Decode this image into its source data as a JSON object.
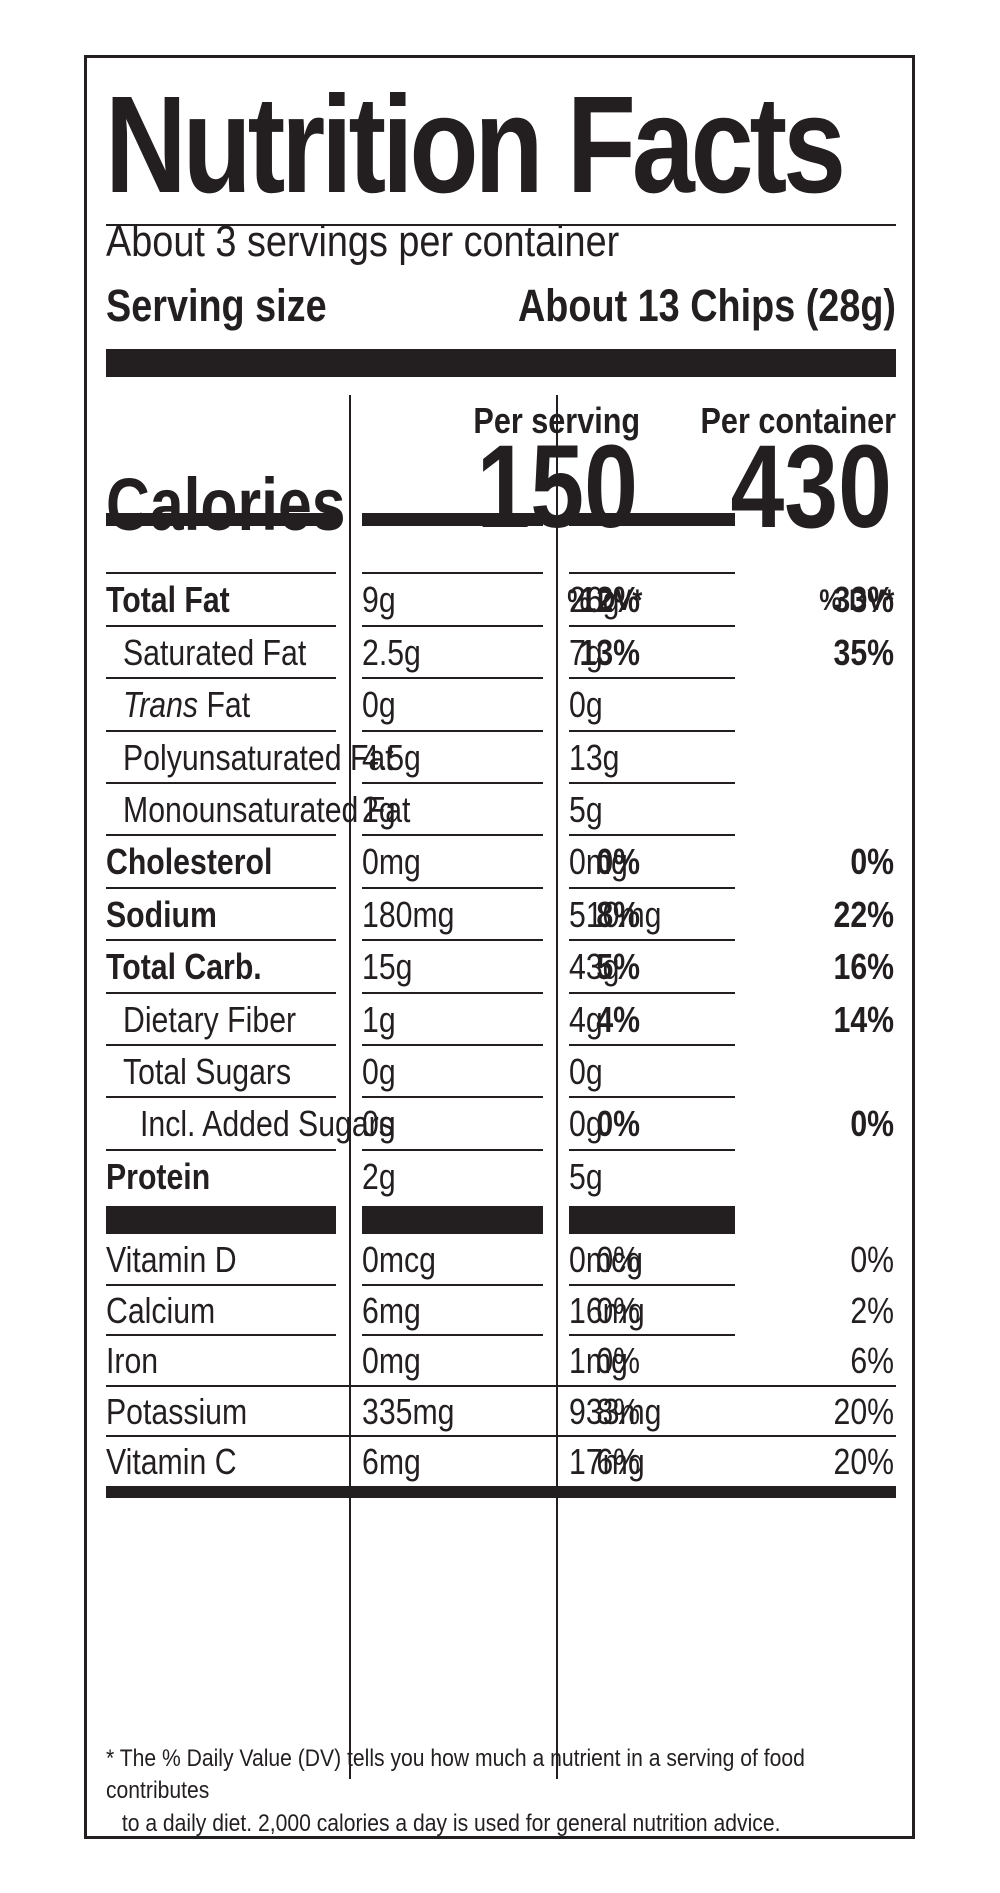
{
  "title": "Nutrition Facts",
  "servings_per_container": "About 3 servings per container",
  "serving_size": {
    "label": "Serving size",
    "value": "About 13 Chips (28g)"
  },
  "columns": {
    "per_serving": "Per serving",
    "per_container": "Per container"
  },
  "calories": {
    "label": "Calories",
    "per_serving": "150",
    "per_container": "430"
  },
  "dv_header": "% DV*",
  "nutrients": [
    {
      "name": "Total Fat",
      "bold": true,
      "indent": 0,
      "s_amt": "9g",
      "s_dv": "12%",
      "c_amt": "26g",
      "c_dv": "33%"
    },
    {
      "name": "Saturated Fat",
      "bold": false,
      "indent": 1,
      "s_amt": "2.5g",
      "s_dv": "13%",
      "c_amt": "7g",
      "c_dv": "35%"
    },
    {
      "name_italic": "Trans",
      "name": " Fat",
      "bold": false,
      "indent": 1,
      "s_amt": "0g",
      "s_dv": "",
      "c_amt": "0g",
      "c_dv": ""
    },
    {
      "name": "Polyunsaturated Fat",
      "bold": false,
      "indent": 1,
      "s_amt": "4.5g",
      "s_dv": "",
      "c_amt": "13g",
      "c_dv": ""
    },
    {
      "name": "Monounsaturated Fat",
      "bold": false,
      "indent": 1,
      "s_amt": "2g",
      "s_dv": "",
      "c_amt": "5g",
      "c_dv": ""
    },
    {
      "name": "Cholesterol",
      "bold": true,
      "indent": 0,
      "s_amt": "0mg",
      "s_dv": "0%",
      "c_amt": "0mg",
      "c_dv": "0%"
    },
    {
      "name": "Sodium",
      "bold": true,
      "indent": 0,
      "s_amt": "180mg",
      "s_dv": "8%",
      "c_amt": "510mg",
      "c_dv": "22%"
    },
    {
      "name": "Total Carb.",
      "bold": true,
      "indent": 0,
      "s_amt": "15g",
      "s_dv": "5%",
      "c_amt": "43g",
      "c_dv": "16%"
    },
    {
      "name": "Dietary Fiber",
      "bold": false,
      "indent": 1,
      "s_amt": "1g",
      "s_dv": "4%",
      "c_amt": "4g",
      "c_dv": "14%"
    },
    {
      "name": "Total Sugars",
      "bold": false,
      "indent": 1,
      "s_amt": "0g",
      "s_dv": "",
      "c_amt": "0g",
      "c_dv": ""
    },
    {
      "name": "Incl. Added Sugars",
      "bold": false,
      "indent": 2,
      "s_amt": "0g",
      "s_dv": "0%",
      "c_amt": "0g",
      "c_dv": "0%"
    },
    {
      "name": "Protein",
      "bold": true,
      "indent": 0,
      "s_amt": "2g",
      "s_dv": "",
      "c_amt": "5g",
      "c_dv": ""
    }
  ],
  "vitamins": [
    {
      "name": "Vitamin D",
      "s_amt": "0mcg",
      "s_dv": "0%",
      "c_amt": "0mcg",
      "c_dv": "0%"
    },
    {
      "name": "Calcium",
      "s_amt": "6mg",
      "s_dv": "0%",
      "c_amt": "16mg",
      "c_dv": "2%"
    },
    {
      "name": "Iron",
      "s_amt": "0mg",
      "s_dv": "0%",
      "c_amt": "1mg",
      "c_dv": "6%"
    },
    {
      "name": "Potassium",
      "s_amt": "335mg",
      "s_dv": "8%",
      "c_amt": "933mg",
      "c_dv": "20%"
    },
    {
      "name": "Vitamin C",
      "s_amt": "6mg",
      "s_dv": "6%",
      "c_amt": "17mg",
      "c_dv": "20%"
    }
  ],
  "footnote": {
    "line1": "* The % Daily Value (DV) tells you how much a nutrient in a serving of food contributes",
    "line2": "to a daily diet. 2,000 calories a day is used for general nutrition advice."
  },
  "colors": {
    "ink": "#231f20",
    "background": "#ffffff"
  }
}
